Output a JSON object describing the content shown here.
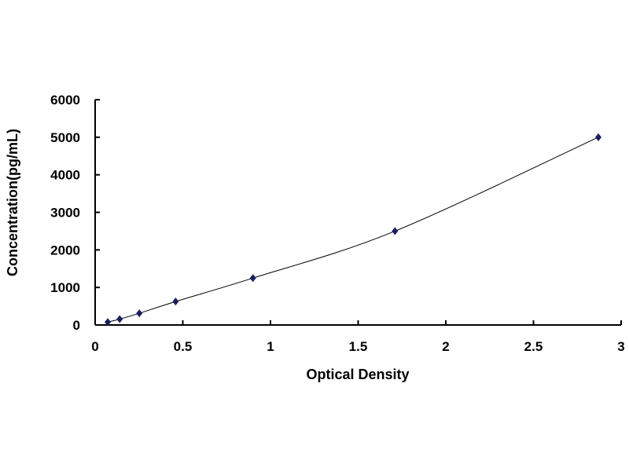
{
  "chart_data": {
    "type": "scatter",
    "title": "",
    "xlabel": "Optical Density",
    "ylabel": "Concentration(pg/mL)",
    "xlim": [
      0,
      3
    ],
    "ylim": [
      0,
      6000
    ],
    "xticks": [
      "0",
      "0.5",
      "1",
      "1.5",
      "2",
      "2.5",
      "3"
    ],
    "yticks": [
      "0",
      "1000",
      "2000",
      "3000",
      "4000",
      "5000",
      "6000"
    ],
    "grid": false,
    "trendline": true,
    "marker": "diamond",
    "colors": {
      "marker": "#1a1f5c",
      "line": "#000000"
    },
    "points": [
      {
        "x": 0.072,
        "y": 78
      },
      {
        "x": 0.14,
        "y": 156
      },
      {
        "x": 0.252,
        "y": 312
      },
      {
        "x": 0.459,
        "y": 625
      },
      {
        "x": 0.9,
        "y": 1250
      },
      {
        "x": 1.71,
        "y": 2500
      },
      {
        "x": 2.87,
        "y": 5000
      }
    ]
  }
}
